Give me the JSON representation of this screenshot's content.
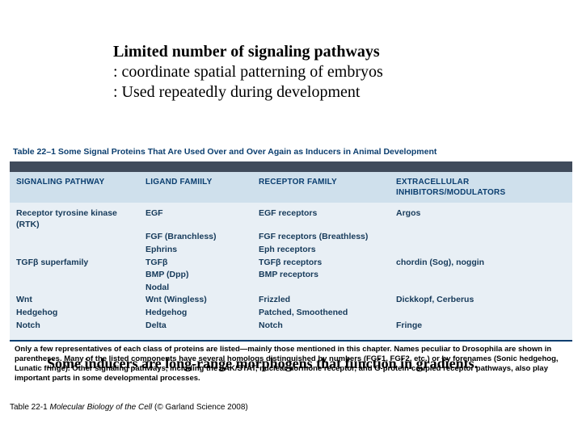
{
  "heading": {
    "title": "Limited number of signaling pathways",
    "line1": ": coordinate spatial patterning of embryos",
    "line2": ": Used repeatedly during development"
  },
  "table": {
    "caption_label": "Table 22–1",
    "caption_text": "Some Signal Proteins That Are Used Over and Over Again as Inducers in Animal Development",
    "columns": [
      "SIGNALING PATHWAY",
      "LIGAND FAMIILY",
      "RECEPTOR FAMILY",
      "EXTRACELLULAR INHIBITORS/MODULATORS"
    ],
    "rows": [
      [
        "Receptor tyrosine kinase (RTK)",
        "EGF",
        "EGF receptors",
        "Argos"
      ],
      [
        "",
        "FGF (Branchless)",
        "FGF receptors (Breathless)",
        ""
      ],
      [
        "",
        "Ephrins",
        "Eph receptors",
        ""
      ],
      [
        "TGFβ superfamily",
        "TGFβ",
        "TGFβ receptors",
        "chordin (Sog), noggin"
      ],
      [
        "",
        "BMP (Dpp)",
        "BMP receptors",
        ""
      ],
      [
        "",
        "Nodal",
        "",
        ""
      ],
      [
        "Wnt",
        "Wnt (Wingless)",
        "Frizzled",
        "Dickkopf, Cerberus"
      ],
      [
        "Hedgehog",
        "Hedgehog",
        "Patched, Smoothened",
        ""
      ],
      [
        "Notch",
        "Delta",
        "Notch",
        "Fringe"
      ]
    ],
    "footnote": "Only a few representatives of each class of proteins are listed—mainly those mentioned in this chapter. Names peculiar to Drosophila are shown in parentheses. Many of the listed components have several homologs distinguished by numbers (FGF1, FGF2, etc.) or by forenames (Sonic hedgehog, Lunatic fringe). Other signaling pathways, including the JAK/STAT, nuclear hormone receptor, and G-protein-coupled receptor pathways, also play important parts in some developmental processes.",
    "colors": {
      "header_bar": "#404b5b",
      "head_bg": "#cfe0ec",
      "body_bg": "#e8eff5",
      "text_blue": "#0b3e6f"
    }
  },
  "bottom_note": "Some inducers are long-range morphogens that function in gradients.",
  "credit": {
    "label": "Table 22-1",
    "book": "Molecular Biology of the Cell",
    "rest": "(© Garland Science 2008)"
  }
}
